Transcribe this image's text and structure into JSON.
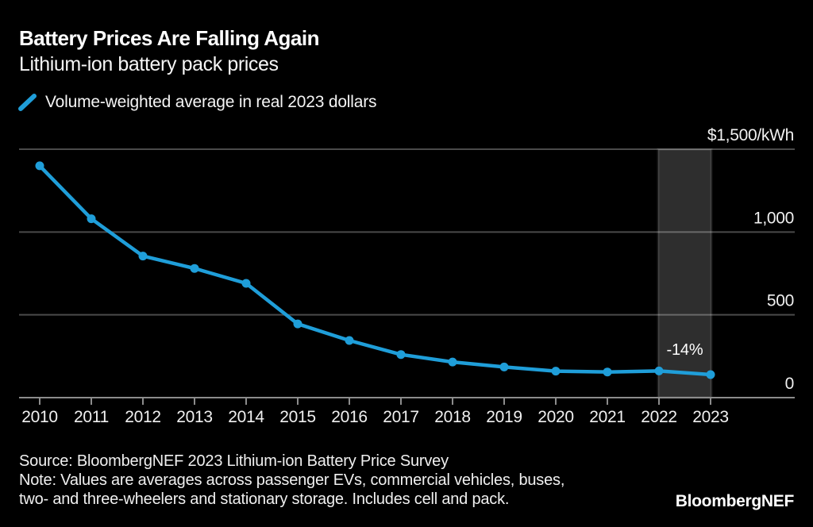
{
  "header": {
    "title": "Battery Prices Are Falling Again",
    "subtitle": "Lithium-ion battery pack prices"
  },
  "legend": {
    "marker": "blue-slash-icon",
    "series_label": "Volume-weighted average in real 2023 dollars"
  },
  "chart_data": {
    "type": "line",
    "title": "Battery Prices Are Falling Again",
    "subtitle": "Lithium-ion battery pack prices",
    "x": [
      2010,
      2011,
      2012,
      2013,
      2014,
      2015,
      2016,
      2017,
      2018,
      2019,
      2020,
      2021,
      2022,
      2023
    ],
    "series": [
      {
        "name": "Volume-weighted average in real 2023 dollars",
        "values": [
          1400,
          1080,
          855,
          780,
          690,
          445,
          345,
          260,
          215,
          185,
          160,
          155,
          161,
          139
        ]
      }
    ],
    "unit": "$/kWh",
    "ylim": [
      0,
      1500
    ],
    "grid": true,
    "legend_position": "top-left",
    "y_axis": {
      "side": "right",
      "tick_values": [
        1500,
        1000,
        500,
        0
      ],
      "tick_labels": [
        "$1,500/kWh",
        "1,000",
        "500",
        "0"
      ]
    },
    "highlight_band": {
      "from_year": 2022,
      "to_year": 2023,
      "label": "-14%"
    }
  },
  "footer": {
    "source_line": "Source: BloombergNEF 2023 Lithium-ion Battery Price Survey",
    "note_lines": [
      "Note: Values are averages across passenger EVs, commercial vehicles, buses,",
      "two- and three-wheelers and stationary storage. Includes cell and pack."
    ],
    "logo_text": "BloombergNEF"
  },
  "colors": {
    "background": "#000000",
    "accent_blue": "#1f9ed9",
    "gridline": "#4a4a4a",
    "axis": "#8c8c8c",
    "band_fill": "rgba(255,255,255,0.18)",
    "band_edge": "rgba(255,255,255,0.10)",
    "text": "#f2f2f2"
  }
}
